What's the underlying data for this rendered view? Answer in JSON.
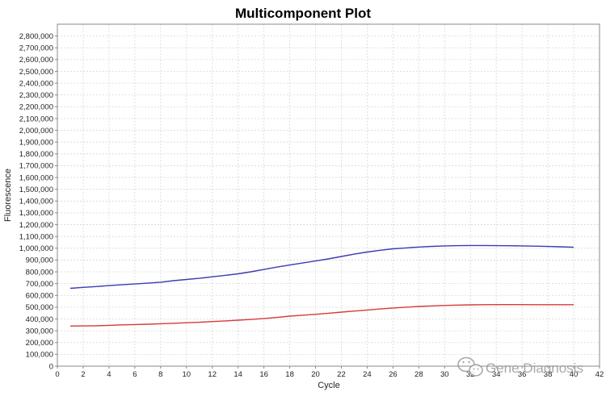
{
  "chart_data": {
    "type": "line",
    "title": "Multicomponent Plot",
    "xlabel": "Cycle",
    "ylabel": "Fluorescence",
    "xlim": [
      0,
      42
    ],
    "ylim": [
      0,
      2900000
    ],
    "grid": true,
    "x_ticks": [
      0,
      2,
      4,
      6,
      8,
      10,
      12,
      14,
      16,
      18,
      20,
      22,
      24,
      26,
      28,
      30,
      32,
      34,
      36,
      38,
      40,
      42
    ],
    "y_ticks": [
      0,
      100000,
      200000,
      300000,
      400000,
      500000,
      600000,
      700000,
      800000,
      900000,
      1000000,
      1100000,
      1200000,
      1300000,
      1400000,
      1500000,
      1600000,
      1700000,
      1800000,
      1900000,
      2000000,
      2100000,
      2200000,
      2300000,
      2400000,
      2500000,
      2600000,
      2700000,
      2800000
    ],
    "y_tick_labels": [
      "0",
      "100,000",
      "200,000",
      "300,000",
      "400,000",
      "500,000",
      "600,000",
      "700,000",
      "800,000",
      "900,000",
      "1,000,000",
      "1,100,000",
      "1,200,000",
      "1,300,000",
      "1,400,000",
      "1,500,000",
      "1,600,000",
      "1,700,000",
      "1,800,000",
      "1,900,000",
      "2,000,000",
      "2,100,000",
      "2,200,000",
      "2,300,000",
      "2,400,000",
      "2,500,000",
      "2,600,000",
      "2,700,000",
      "2,800,000"
    ],
    "x": [
      1,
      2,
      3,
      4,
      5,
      6,
      7,
      8,
      9,
      10,
      11,
      12,
      13,
      14,
      15,
      16,
      17,
      18,
      19,
      20,
      21,
      22,
      23,
      24,
      25,
      26,
      27,
      28,
      29,
      30,
      31,
      32,
      33,
      34,
      35,
      36,
      37,
      38,
      39,
      40
    ],
    "series": [
      {
        "color": "#3b3bb0",
        "values": [
          660000,
          668000,
          675000,
          683000,
          690000,
          697000,
          704000,
          712000,
          725000,
          735000,
          745000,
          758000,
          770000,
          783000,
          800000,
          820000,
          840000,
          858000,
          875000,
          892000,
          910000,
          930000,
          950000,
          968000,
          983000,
          995000,
          1003000,
          1010000,
          1016000,
          1020000,
          1022000,
          1023000,
          1023000,
          1022000,
          1021000,
          1020000,
          1018000,
          1015000,
          1012000,
          1008000
        ]
      },
      {
        "color": "#d63a3a",
        "values": [
          340000,
          341000,
          343000,
          346000,
          350000,
          353000,
          356000,
          360000,
          364000,
          368000,
          372000,
          378000,
          384000,
          390000,
          396000,
          404000,
          413000,
          424000,
          432000,
          440000,
          449000,
          458000,
          467000,
          476000,
          485000,
          493000,
          500000,
          506000,
          511000,
          515000,
          518000,
          520000,
          521000,
          522000,
          522000,
          522000,
          521000,
          521000,
          521000,
          521000
        ]
      }
    ]
  },
  "watermark": {
    "text": "Gene Diagnosis",
    "icon": "wechat-icon"
  }
}
